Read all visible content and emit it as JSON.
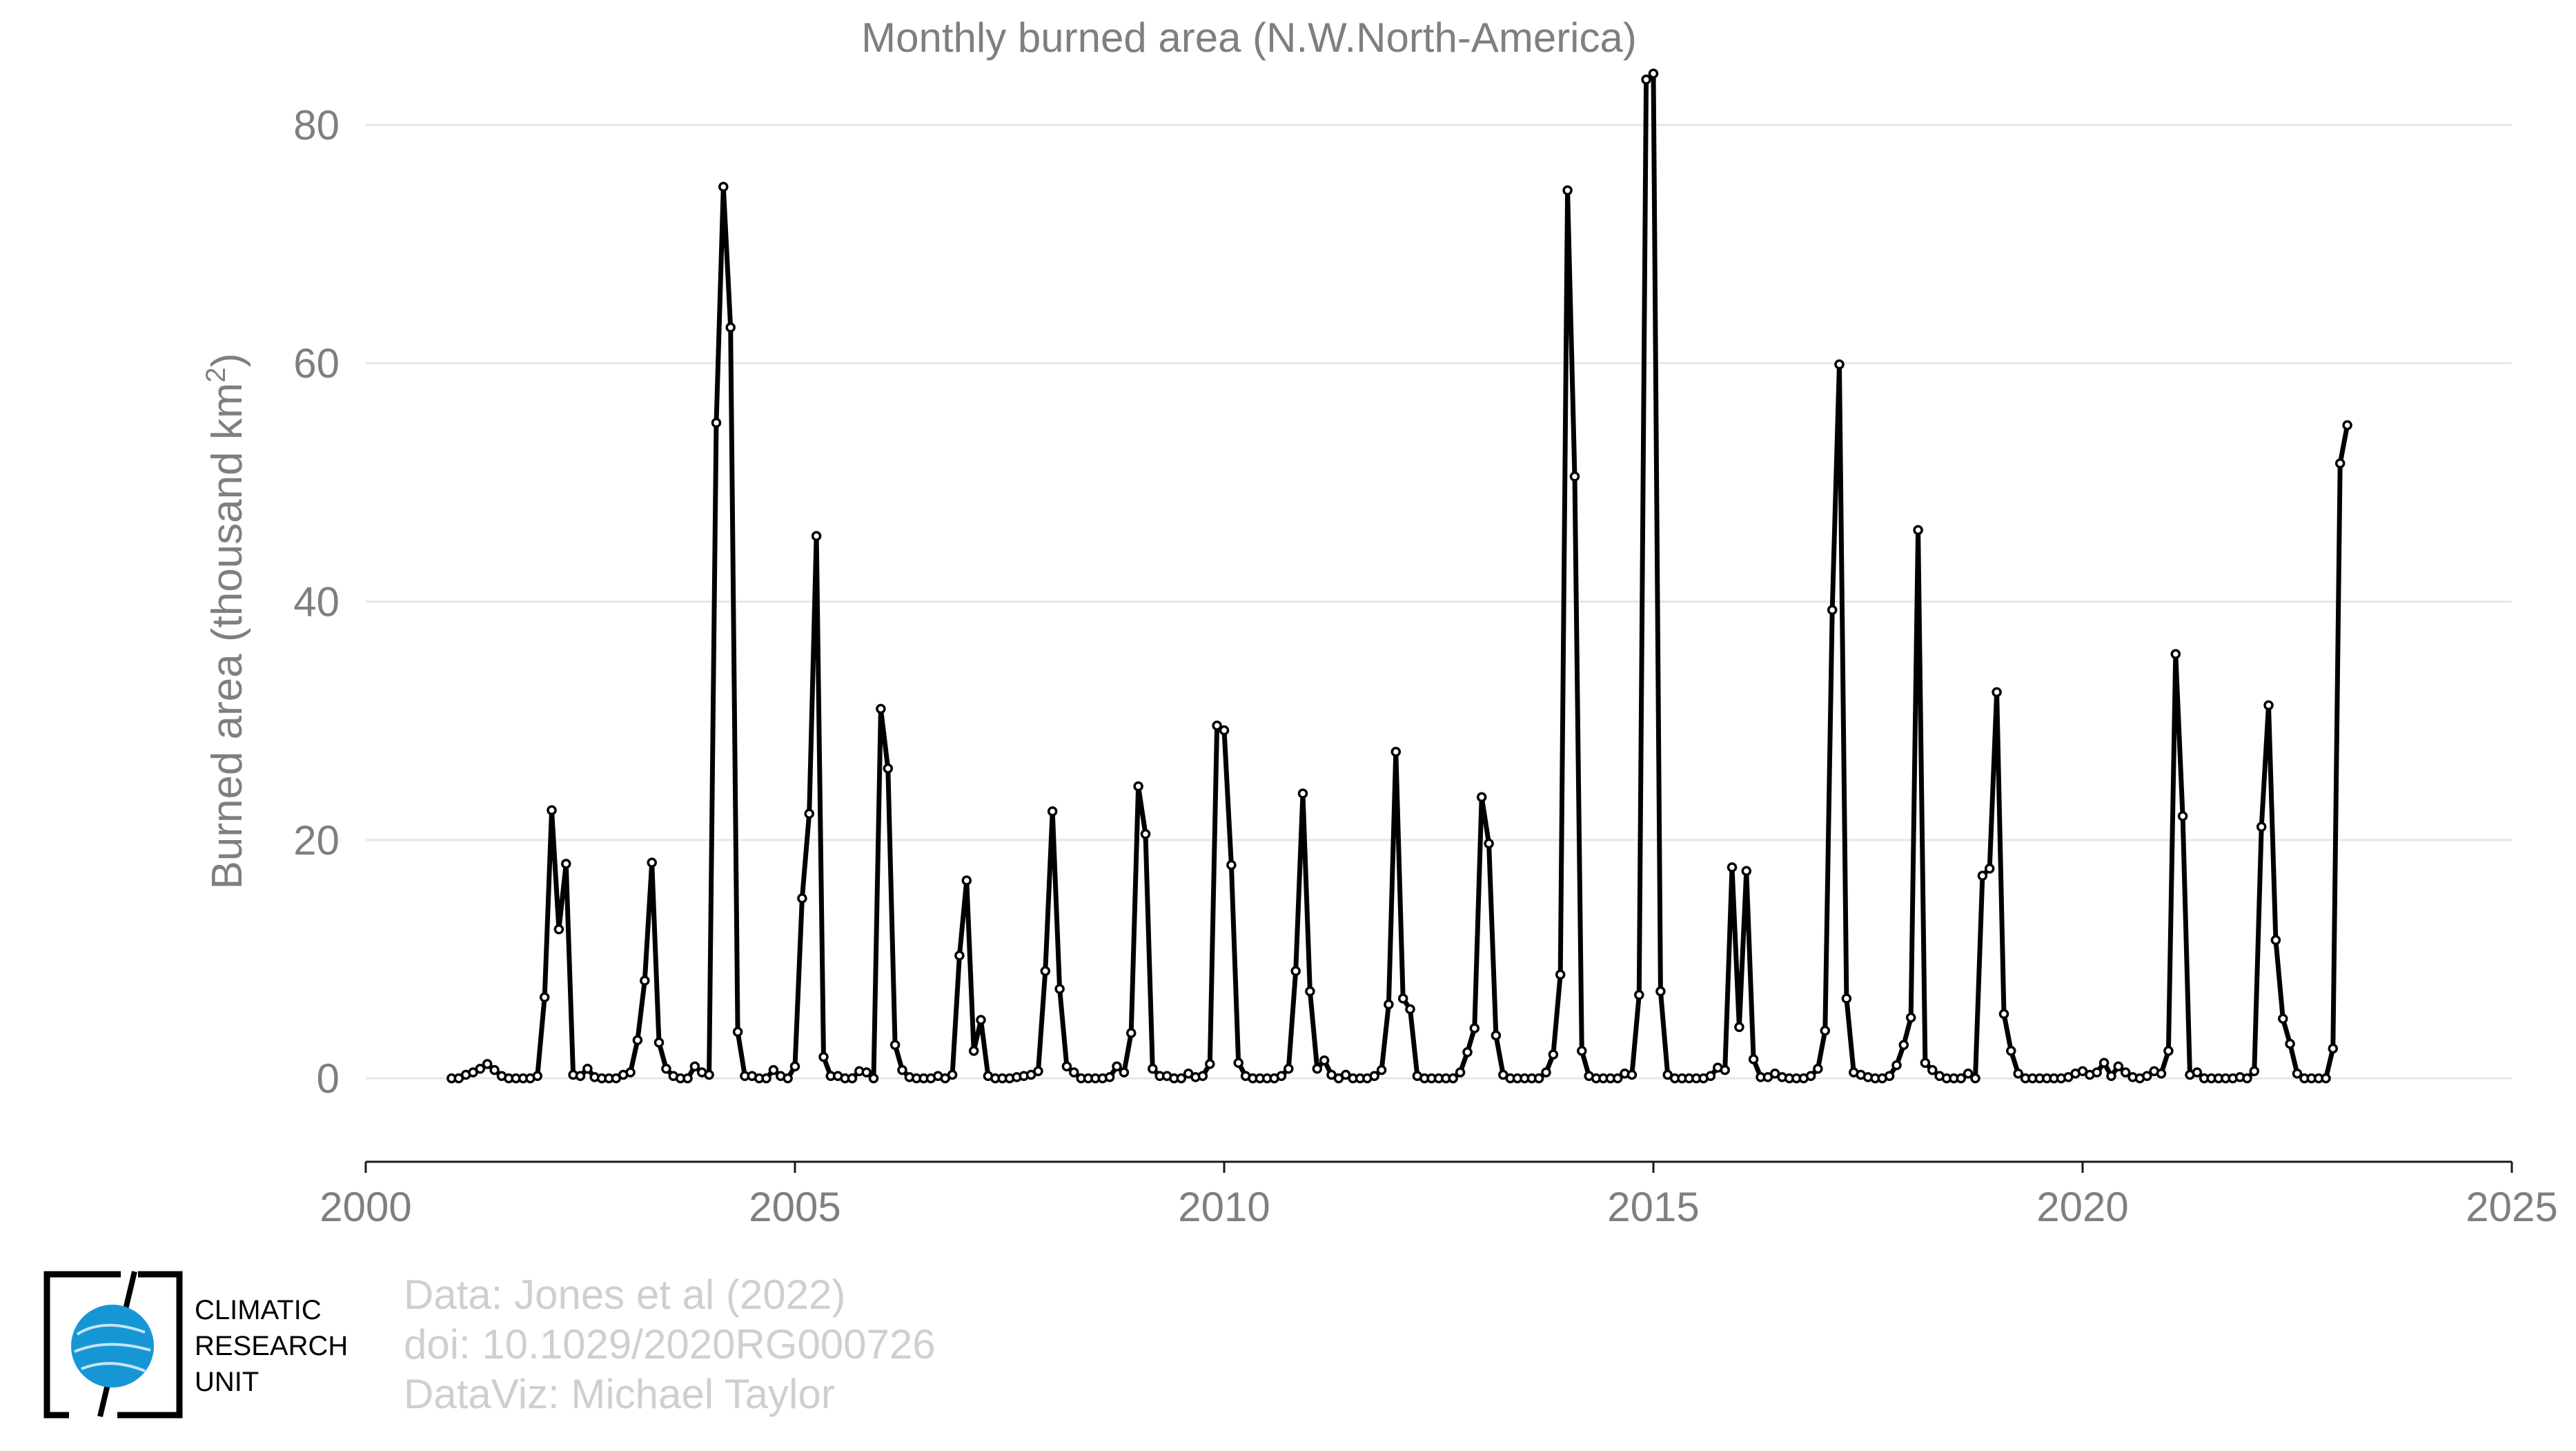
{
  "chart_data": {
    "type": "line",
    "title": "Monthly burned area (N.W.North-America)",
    "xlabel": "",
    "ylabel": "Burned area (thousand km",
    "ylabel_sup": "2",
    "ylabel_end": ")",
    "xlim": [
      2000,
      2025
    ],
    "ylim": [
      -7,
      87
    ],
    "x_ticks": [
      2000,
      2005,
      2010,
      2015,
      2020,
      2025
    ],
    "y_ticks": [
      0,
      20,
      40,
      60,
      80
    ],
    "x_tick_labels": [
      "2000",
      "2005",
      "2010",
      "2015",
      "2020",
      "2025"
    ],
    "y_tick_labels": [
      "0",
      "20",
      "40",
      "60",
      "80"
    ],
    "grid": "horizontal",
    "legend": "none",
    "start_year": 2001,
    "start_month": 1,
    "series": [
      {
        "values": [
          0.0,
          0.0,
          0.3,
          0.5,
          0.8,
          1.2,
          0.7,
          0.2,
          0.0,
          0.0,
          0.0,
          0.0,
          0.2,
          6.8,
          22.5,
          12.5,
          18.0,
          0.3,
          0.2,
          0.8,
          0.1,
          0.0,
          0.0,
          0.0,
          0.3,
          0.5,
          3.2,
          8.2,
          18.1,
          3.0,
          0.8,
          0.2,
          0.0,
          0.0,
          1.0,
          0.5,
          0.3,
          55.0,
          74.8,
          63.0,
          3.9,
          0.2,
          0.2,
          0.0,
          0.0,
          0.7,
          0.2,
          0.0,
          1.0,
          15.1,
          22.2,
          45.5,
          1.8,
          0.2,
          0.2,
          0.0,
          0.0,
          0.6,
          0.5,
          0.0,
          31.0,
          26.0,
          2.8,
          0.7,
          0.1,
          0.0,
          0.0,
          0.0,
          0.2,
          0.0,
          0.3,
          10.3,
          16.6,
          2.3,
          4.9,
          0.2,
          0.0,
          0.0,
          0.0,
          0.1,
          0.2,
          0.3,
          0.6,
          9.0,
          22.4,
          7.5,
          1.0,
          0.5,
          0.0,
          0.0,
          0.0,
          0.0,
          0.1,
          1.0,
          0.5,
          3.8,
          24.5,
          20.5,
          0.8,
          0.2,
          0.2,
          0.0,
          0.0,
          0.4,
          0.1,
          0.2,
          1.2,
          29.6,
          29.2,
          17.9,
          1.3,
          0.2,
          0.0,
          0.0,
          0.0,
          0.0,
          0.2,
          0.8,
          9.0,
          23.9,
          7.3,
          0.8,
          1.5,
          0.3,
          0.0,
          0.3,
          0.0,
          0.0,
          0.0,
          0.2,
          0.7,
          6.2,
          27.4,
          6.7,
          5.8,
          0.2,
          0.0,
          0.0,
          0.0,
          0.0,
          0.0,
          0.5,
          2.2,
          4.2,
          23.6,
          19.7,
          3.6,
          0.3,
          0.0,
          0.0,
          0.0,
          0.0,
          0.0,
          0.5,
          2.0,
          8.7,
          74.5,
          50.5,
          2.3,
          0.2,
          0.0,
          0.0,
          0.0,
          0.0,
          0.4,
          0.3,
          7.0,
          83.8,
          84.3,
          7.3,
          0.3,
          0.0,
          0.0,
          0.0,
          0.0,
          0.0,
          0.2,
          0.9,
          0.7,
          17.7,
          4.3,
          17.4,
          1.6,
          0.1,
          0.1,
          0.4,
          0.1,
          0.0,
          0.0,
          0.0,
          0.2,
          0.8,
          4.0,
          39.3,
          59.9,
          6.7,
          0.5,
          0.3,
          0.1,
          0.0,
          0.0,
          0.2,
          1.1,
          2.8,
          5.1,
          46.0,
          1.3,
          0.7,
          0.2,
          0.0,
          0.0,
          0.0,
          0.4,
          0.0,
          17.0,
          17.6,
          32.4,
          5.4,
          2.3,
          0.4,
          0.0,
          0.0,
          0.0,
          0.0,
          0.0,
          0.0,
          0.1,
          0.4,
          0.6,
          0.3,
          0.5,
          1.3,
          0.2,
          1.0,
          0.5,
          0.1,
          0.0,
          0.2,
          0.6,
          0.4,
          2.3,
          35.6,
          22.0,
          0.3,
          0.5,
          0.0,
          0.0,
          0.0,
          0.0,
          0.0,
          0.1,
          0.0,
          0.6,
          21.1,
          31.3,
          11.6,
          5.0,
          2.9,
          0.4,
          0.0,
          0.0,
          0.0,
          0.0,
          2.5,
          51.6,
          54.8
        ]
      }
    ]
  },
  "logo": {
    "lines": [
      "CLIMATIC",
      "RESEARCH",
      "UNIT"
    ]
  },
  "credits": {
    "line1": "Data: Jones et al (2022)",
    "line2": "doi: 10.1029/2020RG000726",
    "line3": "DataViz: Michael Taylor"
  },
  "colors": {
    "series": "#000000",
    "grid": "#e6e6e6",
    "text": "#7f7f7f",
    "credits": "#cfcfcf",
    "logo_globe": "#1796d6"
  }
}
